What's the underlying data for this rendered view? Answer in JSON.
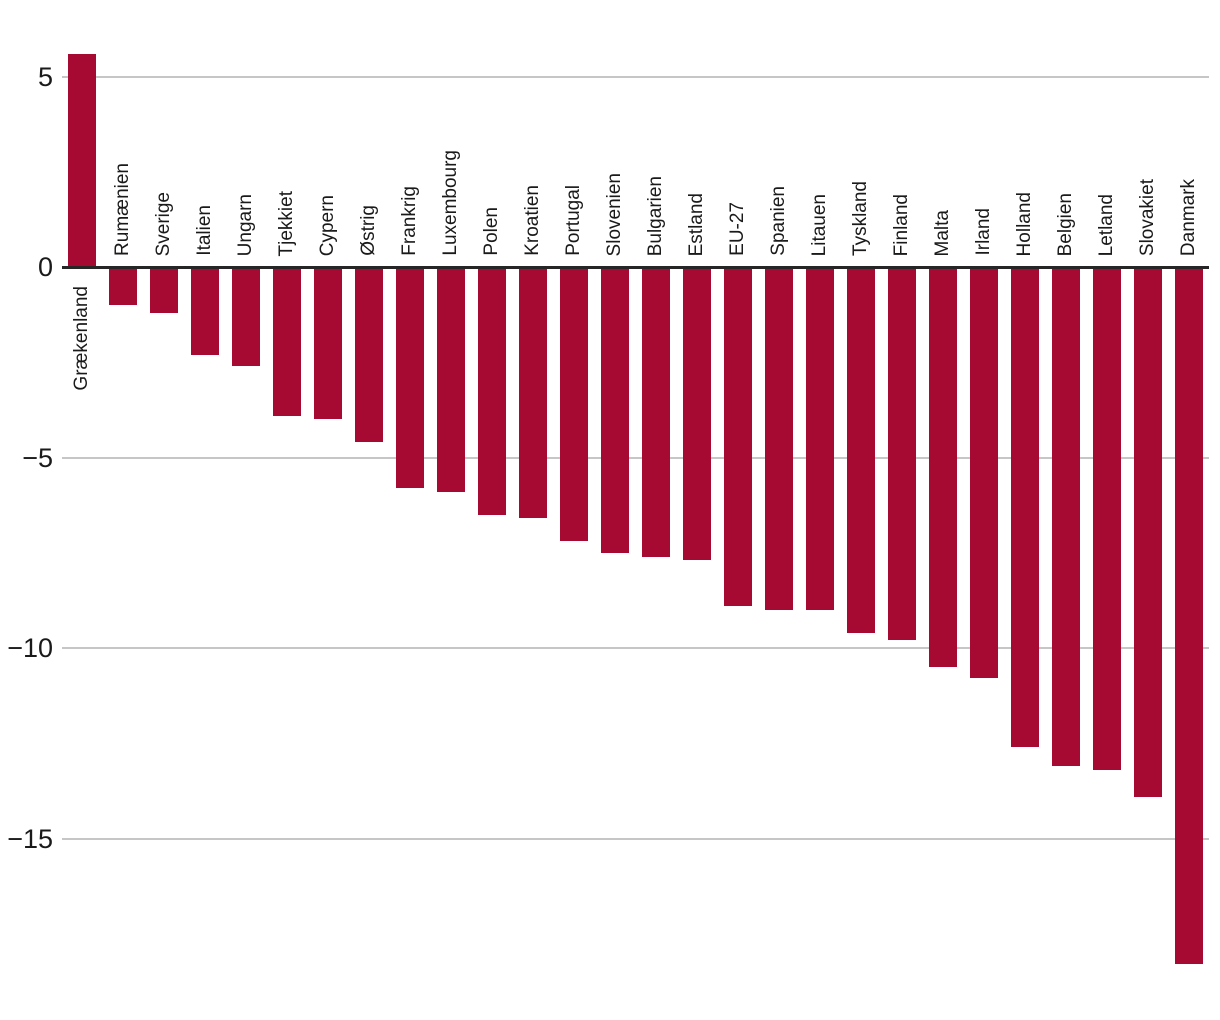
{
  "chart_data": {
    "type": "bar",
    "title": "",
    "xlabel": "",
    "ylabel": "",
    "categories": [
      "Grækenland",
      "Rumænien",
      "Sverige",
      "Italien",
      "Ungarn",
      "Tjekkiet",
      "Cypern",
      "Østrig",
      "Frankrig",
      "Luxembourg",
      "Polen",
      "Kroatien",
      "Portugal",
      "Slovenien",
      "Bulgarien",
      "Estland",
      "EU-27",
      "Spanien",
      "Litauen",
      "Tyskland",
      "Finland",
      "Malta",
      "Irland",
      "Holland",
      "Belgien",
      "Letland",
      "Slovakiet",
      "Danmark"
    ],
    "values": [
      5.6,
      -1.0,
      -1.2,
      -2.3,
      -2.6,
      -3.9,
      -4.0,
      -4.6,
      -5.8,
      -5.9,
      -6.5,
      -6.6,
      -7.2,
      -7.5,
      -7.6,
      -7.7,
      -8.9,
      -9.0,
      -9.0,
      -9.6,
      -9.8,
      -10.5,
      -10.8,
      -12.6,
      -13.1,
      -13.2,
      -13.9,
      -18.3
    ],
    "yticks": [
      5,
      0,
      -5,
      -10,
      -15
    ],
    "ytick_labels": [
      "5",
      "0",
      "−5",
      "−10",
      "−15"
    ],
    "ylim": [
      -19.8,
      7.0
    ],
    "grid": true,
    "legend": null,
    "bar_color": "#a60a33",
    "axis_color": "#262626",
    "gridline_color": "#c6c6c6",
    "text_color": "#1a1a1a"
  }
}
